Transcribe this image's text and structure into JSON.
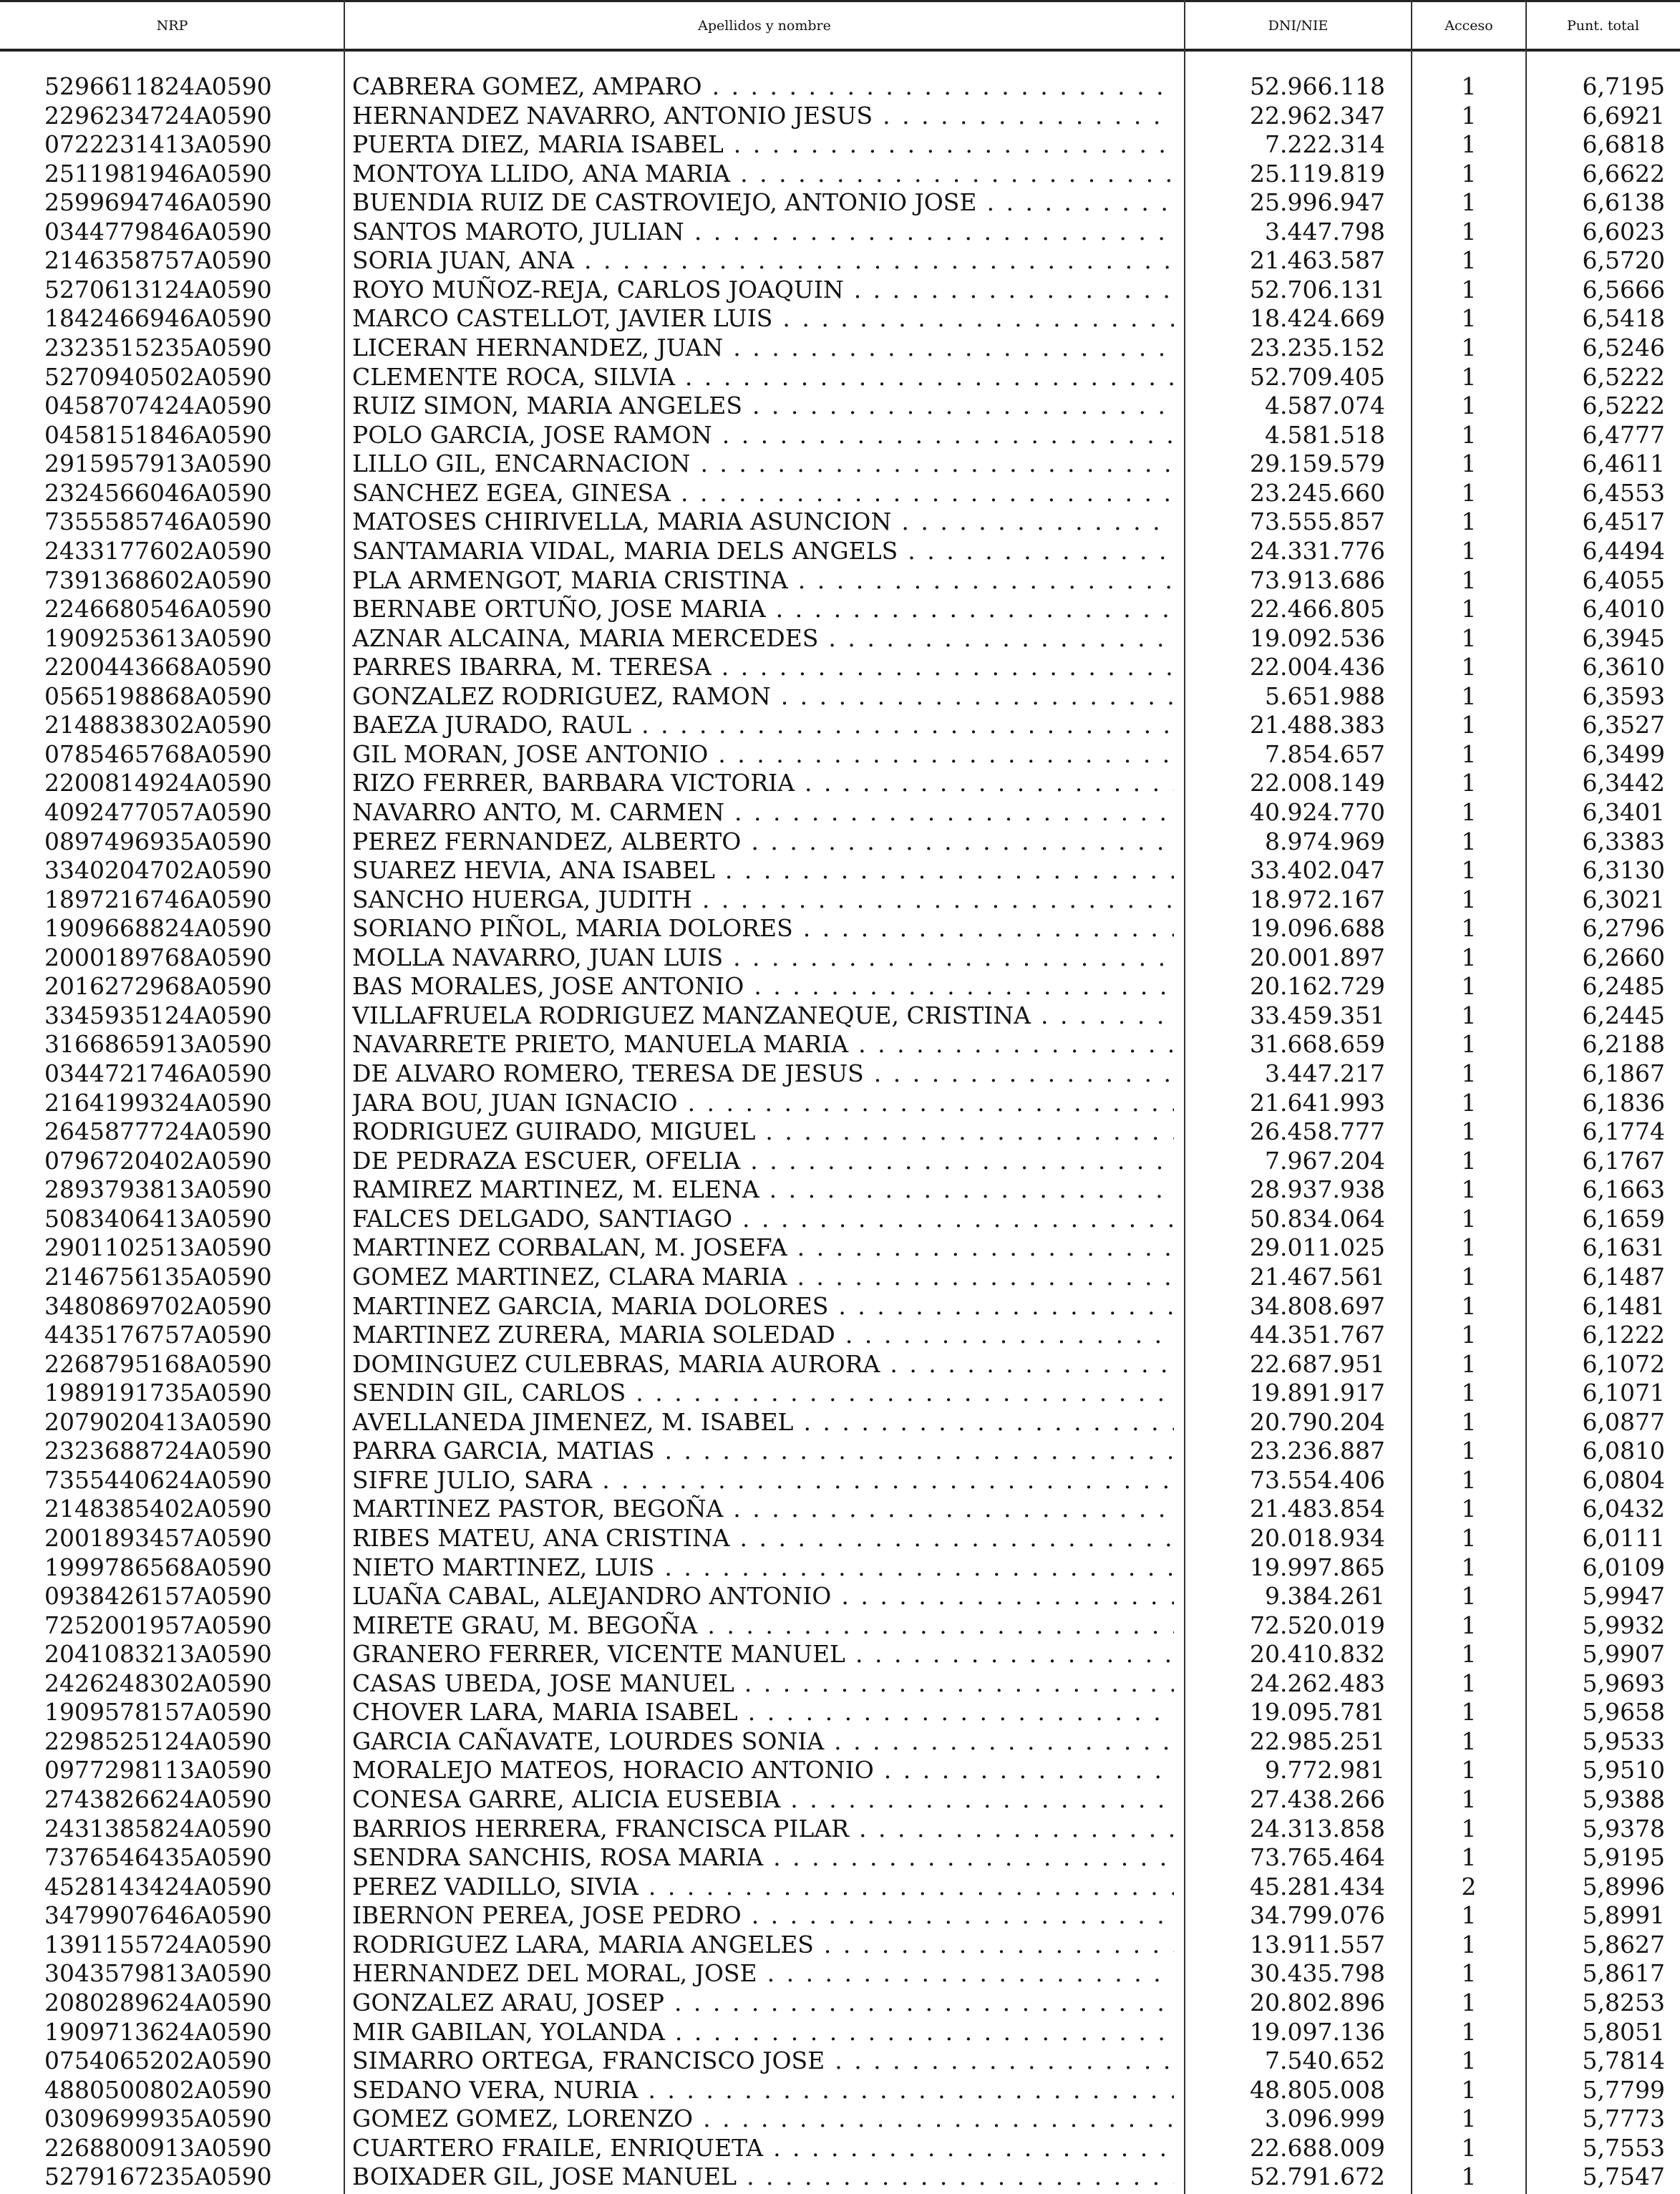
{
  "headers": {
    "nrp": "NRP",
    "name": "Apellidos y nombre",
    "dni": "DNI/NIE",
    "acceso": "Acceso",
    "punt": "Punt. total"
  },
  "rows": [
    [
      "5296611824A0590",
      "CABRERA GOMEZ, AMPARO",
      "52.966.118",
      "1",
      "6,7195"
    ],
    [
      "2296234724A0590",
      "HERNANDEZ NAVARRO, ANTONIO JESUS",
      "22.962.347",
      "1",
      "6,6921"
    ],
    [
      "0722231413A0590",
      "PUERTA DIEZ, MARIA ISABEL",
      "7.222.314",
      "1",
      "6,6818"
    ],
    [
      "2511981946A0590",
      "MONTOYA LLIDO, ANA MARIA",
      "25.119.819",
      "1",
      "6,6622"
    ],
    [
      "2599694746A0590",
      "BUENDIA RUIZ DE CASTROVIEJO, ANTONIO JOSE",
      "25.996.947",
      "1",
      "6,6138"
    ],
    [
      "0344779846A0590",
      "SANTOS MAROTO, JULIAN",
      "3.447.798",
      "1",
      "6,6023"
    ],
    [
      "2146358757A0590",
      "SORIA JUAN, ANA",
      "21.463.587",
      "1",
      "6,5720"
    ],
    [
      "5270613124A0590",
      "ROYO MUÑOZ-REJA, CARLOS JOAQUIN",
      "52.706.131",
      "1",
      "6,5666"
    ],
    [
      "1842466946A0590",
      "MARCO CASTELLOT, JAVIER LUIS",
      "18.424.669",
      "1",
      "6,5418"
    ],
    [
      "2323515235A0590",
      "LICERAN HERNANDEZ, JUAN",
      "23.235.152",
      "1",
      "6,5246"
    ],
    [
      "5270940502A0590",
      "CLEMENTE ROCA, SILVIA",
      "52.709.405",
      "1",
      "6,5222"
    ],
    [
      "0458707424A0590",
      "RUIZ SIMON, MARIA ANGELES",
      "4.587.074",
      "1",
      "6,5222"
    ],
    [
      "0458151846A0590",
      "POLO GARCIA, JOSE RAMON",
      "4.581.518",
      "1",
      "6,4777"
    ],
    [
      "2915957913A0590",
      "LILLO GIL, ENCARNACION",
      "29.159.579",
      "1",
      "6,4611"
    ],
    [
      "2324566046A0590",
      "SANCHEZ EGEA, GINESA",
      "23.245.660",
      "1",
      "6,4553"
    ],
    [
      "7355585746A0590",
      "MATOSES CHIRIVELLA, MARIA ASUNCION",
      "73.555.857",
      "1",
      "6,4517"
    ],
    [
      "2433177602A0590",
      "SANTAMARIA VIDAL, MARIA DELS ANGELS",
      "24.331.776",
      "1",
      "6,4494"
    ],
    [
      "7391368602A0590",
      "PLA ARMENGOT, MARIA CRISTINA",
      "73.913.686",
      "1",
      "6,4055"
    ],
    [
      "2246680546A0590",
      "BERNABE ORTUÑO, JOSE MARIA",
      "22.466.805",
      "1",
      "6,4010"
    ],
    [
      "1909253613A0590",
      "AZNAR ALCAINA, MARIA MERCEDES",
      "19.092.536",
      "1",
      "6,3945"
    ],
    [
      "2200443668A0590",
      "PARRES IBARRA, M. TERESA",
      "22.004.436",
      "1",
      "6,3610"
    ],
    [
      "0565198868A0590",
      "GONZALEZ RODRIGUEZ, RAMON",
      "5.651.988",
      "1",
      "6,3593"
    ],
    [
      "2148838302A0590",
      "BAEZA JURADO, RAUL",
      "21.488.383",
      "1",
      "6,3527"
    ],
    [
      "0785465768A0590",
      "GIL MORAN, JOSE ANTONIO",
      "7.854.657",
      "1",
      "6,3499"
    ],
    [
      "2200814924A0590",
      "RIZO FERRER, BARBARA VICTORIA",
      "22.008.149",
      "1",
      "6,3442"
    ],
    [
      "4092477057A0590",
      "NAVARRO ANTO, M. CARMEN",
      "40.924.770",
      "1",
      "6,3401"
    ],
    [
      "0897496935A0590",
      "PEREZ FERNANDEZ, ALBERTO",
      "8.974.969",
      "1",
      "6,3383"
    ],
    [
      "3340204702A0590",
      "SUAREZ HEVIA, ANA ISABEL",
      "33.402.047",
      "1",
      "6,3130"
    ],
    [
      "1897216746A0590",
      "SANCHO HUERGA, JUDITH",
      "18.972.167",
      "1",
      "6,3021"
    ],
    [
      "1909668824A0590",
      "SORIANO PIÑOL, MARIA DOLORES",
      "19.096.688",
      "1",
      "6,2796"
    ],
    [
      "2000189768A0590",
      "MOLLA NAVARRO, JUAN LUIS",
      "20.001.897",
      "1",
      "6,2660"
    ],
    [
      "2016272968A0590",
      "BAS MORALES, JOSE ANTONIO",
      "20.162.729",
      "1",
      "6,2485"
    ],
    [
      "3345935124A0590",
      "VILLAFRUELA RODRIGUEZ MANZANEQUE, CRISTINA",
      "33.459.351",
      "1",
      "6,2445"
    ],
    [
      "3166865913A0590",
      "NAVARRETE PRIETO, MANUELA MARIA",
      "31.668.659",
      "1",
      "6,2188"
    ],
    [
      "0344721746A0590",
      "DE ALVARO ROMERO, TERESA DE JESUS",
      "3.447.217",
      "1",
      "6,1867"
    ],
    [
      "2164199324A0590",
      "JARA BOU, JUAN IGNACIO",
      "21.641.993",
      "1",
      "6,1836"
    ],
    [
      "2645877724A0590",
      "RODRIGUEZ GUIRADO, MIGUEL",
      "26.458.777",
      "1",
      "6,1774"
    ],
    [
      "0796720402A0590",
      "DE PEDRAZA ESCUER, OFELIA",
      "7.967.204",
      "1",
      "6,1767"
    ],
    [
      "2893793813A0590",
      "RAMIREZ MARTINEZ, M. ELENA",
      "28.937.938",
      "1",
      "6,1663"
    ],
    [
      "5083406413A0590",
      "FALCES DELGADO, SANTIAGO",
      "50.834.064",
      "1",
      "6,1659"
    ],
    [
      "2901102513A0590",
      "MARTINEZ CORBALAN, M. JOSEFA",
      "29.011.025",
      "1",
      "6,1631"
    ],
    [
      "2146756135A0590",
      "GOMEZ MARTINEZ, CLARA MARIA",
      "21.467.561",
      "1",
      "6,1487"
    ],
    [
      "3480869702A0590",
      "MARTINEZ GARCIA, MARIA DOLORES",
      "34.808.697",
      "1",
      "6,1481"
    ],
    [
      "4435176757A0590",
      "MARTINEZ ZURERA, MARIA SOLEDAD",
      "44.351.767",
      "1",
      "6,1222"
    ],
    [
      "2268795168A0590",
      "DOMINGUEZ CULEBRAS, MARIA AURORA",
      "22.687.951",
      "1",
      "6,1072"
    ],
    [
      "1989191735A0590",
      "SENDIN GIL, CARLOS",
      "19.891.917",
      "1",
      "6,1071"
    ],
    [
      "2079020413A0590",
      "AVELLANEDA JIMENEZ, M. ISABEL",
      "20.790.204",
      "1",
      "6,0877"
    ],
    [
      "2323688724A0590",
      "PARRA GARCIA, MATIAS",
      "23.236.887",
      "1",
      "6,0810"
    ],
    [
      "7355440624A0590",
      "SIFRE JULIO, SARA",
      "73.554.406",
      "1",
      "6,0804"
    ],
    [
      "2148385402A0590",
      "MARTINEZ PASTOR, BEGOÑA",
      "21.483.854",
      "1",
      "6,0432"
    ],
    [
      "2001893457A0590",
      "RIBES MATEU, ANA CRISTINA",
      "20.018.934",
      "1",
      "6,0111"
    ],
    [
      "1999786568A0590",
      "NIETO MARTINEZ, LUIS",
      "19.997.865",
      "1",
      "6,0109"
    ],
    [
      "0938426157A0590",
      "LUAÑA CABAL, ALEJANDRO ANTONIO",
      "9.384.261",
      "1",
      "5,9947"
    ],
    [
      "7252001957A0590",
      "MIRETE GRAU, M. BEGOÑA",
      "72.520.019",
      "1",
      "5,9932"
    ],
    [
      "2041083213A0590",
      "GRANERO FERRER, VICENTE MANUEL",
      "20.410.832",
      "1",
      "5,9907"
    ],
    [
      "2426248302A0590",
      "CASAS UBEDA, JOSE MANUEL",
      "24.262.483",
      "1",
      "5,9693"
    ],
    [
      "1909578157A0590",
      "CHOVER LARA, MARIA ISABEL",
      "19.095.781",
      "1",
      "5,9658"
    ],
    [
      "2298525124A0590",
      "GARCIA CAÑAVATE, LOURDES SONIA",
      "22.985.251",
      "1",
      "5,9533"
    ],
    [
      "0977298113A0590",
      "MORALEJO MATEOS, HORACIO ANTONIO",
      "9.772.981",
      "1",
      "5,9510"
    ],
    [
      "2743826624A0590",
      "CONESA GARRE, ALICIA EUSEBIA",
      "27.438.266",
      "1",
      "5,9388"
    ],
    [
      "2431385824A0590",
      "BARRIOS HERRERA, FRANCISCA PILAR",
      "24.313.858",
      "1",
      "5,9378"
    ],
    [
      "7376546435A0590",
      "SENDRA SANCHIS, ROSA MARIA",
      "73.765.464",
      "1",
      "5,9195"
    ],
    [
      "4528143424A0590",
      "PEREZ VADILLO, SIVIA",
      "45.281.434",
      "2",
      "5,8996"
    ],
    [
      "3479907646A0590",
      "IBERNON PEREA, JOSE PEDRO",
      "34.799.076",
      "1",
      "5,8991"
    ],
    [
      "1391155724A0590",
      "RODRIGUEZ LARA, MARIA ANGELES",
      "13.911.557",
      "1",
      "5,8627"
    ],
    [
      "3043579813A0590",
      "HERNANDEZ DEL MORAL, JOSE",
      "30.435.798",
      "1",
      "5,8617"
    ],
    [
      "2080289624A0590",
      "GONZALEZ ARAU, JOSEP",
      "20.802.896",
      "1",
      "5,8253"
    ],
    [
      "1909713624A0590",
      "MIR GABILAN, YOLANDA",
      "19.097.136",
      "1",
      "5,8051"
    ],
    [
      "0754065202A0590",
      "SIMARRO ORTEGA, FRANCISCO JOSE",
      "7.540.652",
      "1",
      "5,7814"
    ],
    [
      "4880500802A0590",
      "SEDANO VERA, NURIA",
      "48.805.008",
      "1",
      "5,7799"
    ],
    [
      "0309699935A0590",
      "GOMEZ GOMEZ, LORENZO",
      "3.096.999",
      "1",
      "5,7773"
    ],
    [
      "2268800913A0590",
      "CUARTERO FRAILE, ENRIQUETA",
      "22.688.009",
      "1",
      "5,7553"
    ],
    [
      "5279167235A0590",
      "BOIXADER GIL, JOSE MANUEL",
      "52.791.672",
      "1",
      "5,7547"
    ]
  ]
}
